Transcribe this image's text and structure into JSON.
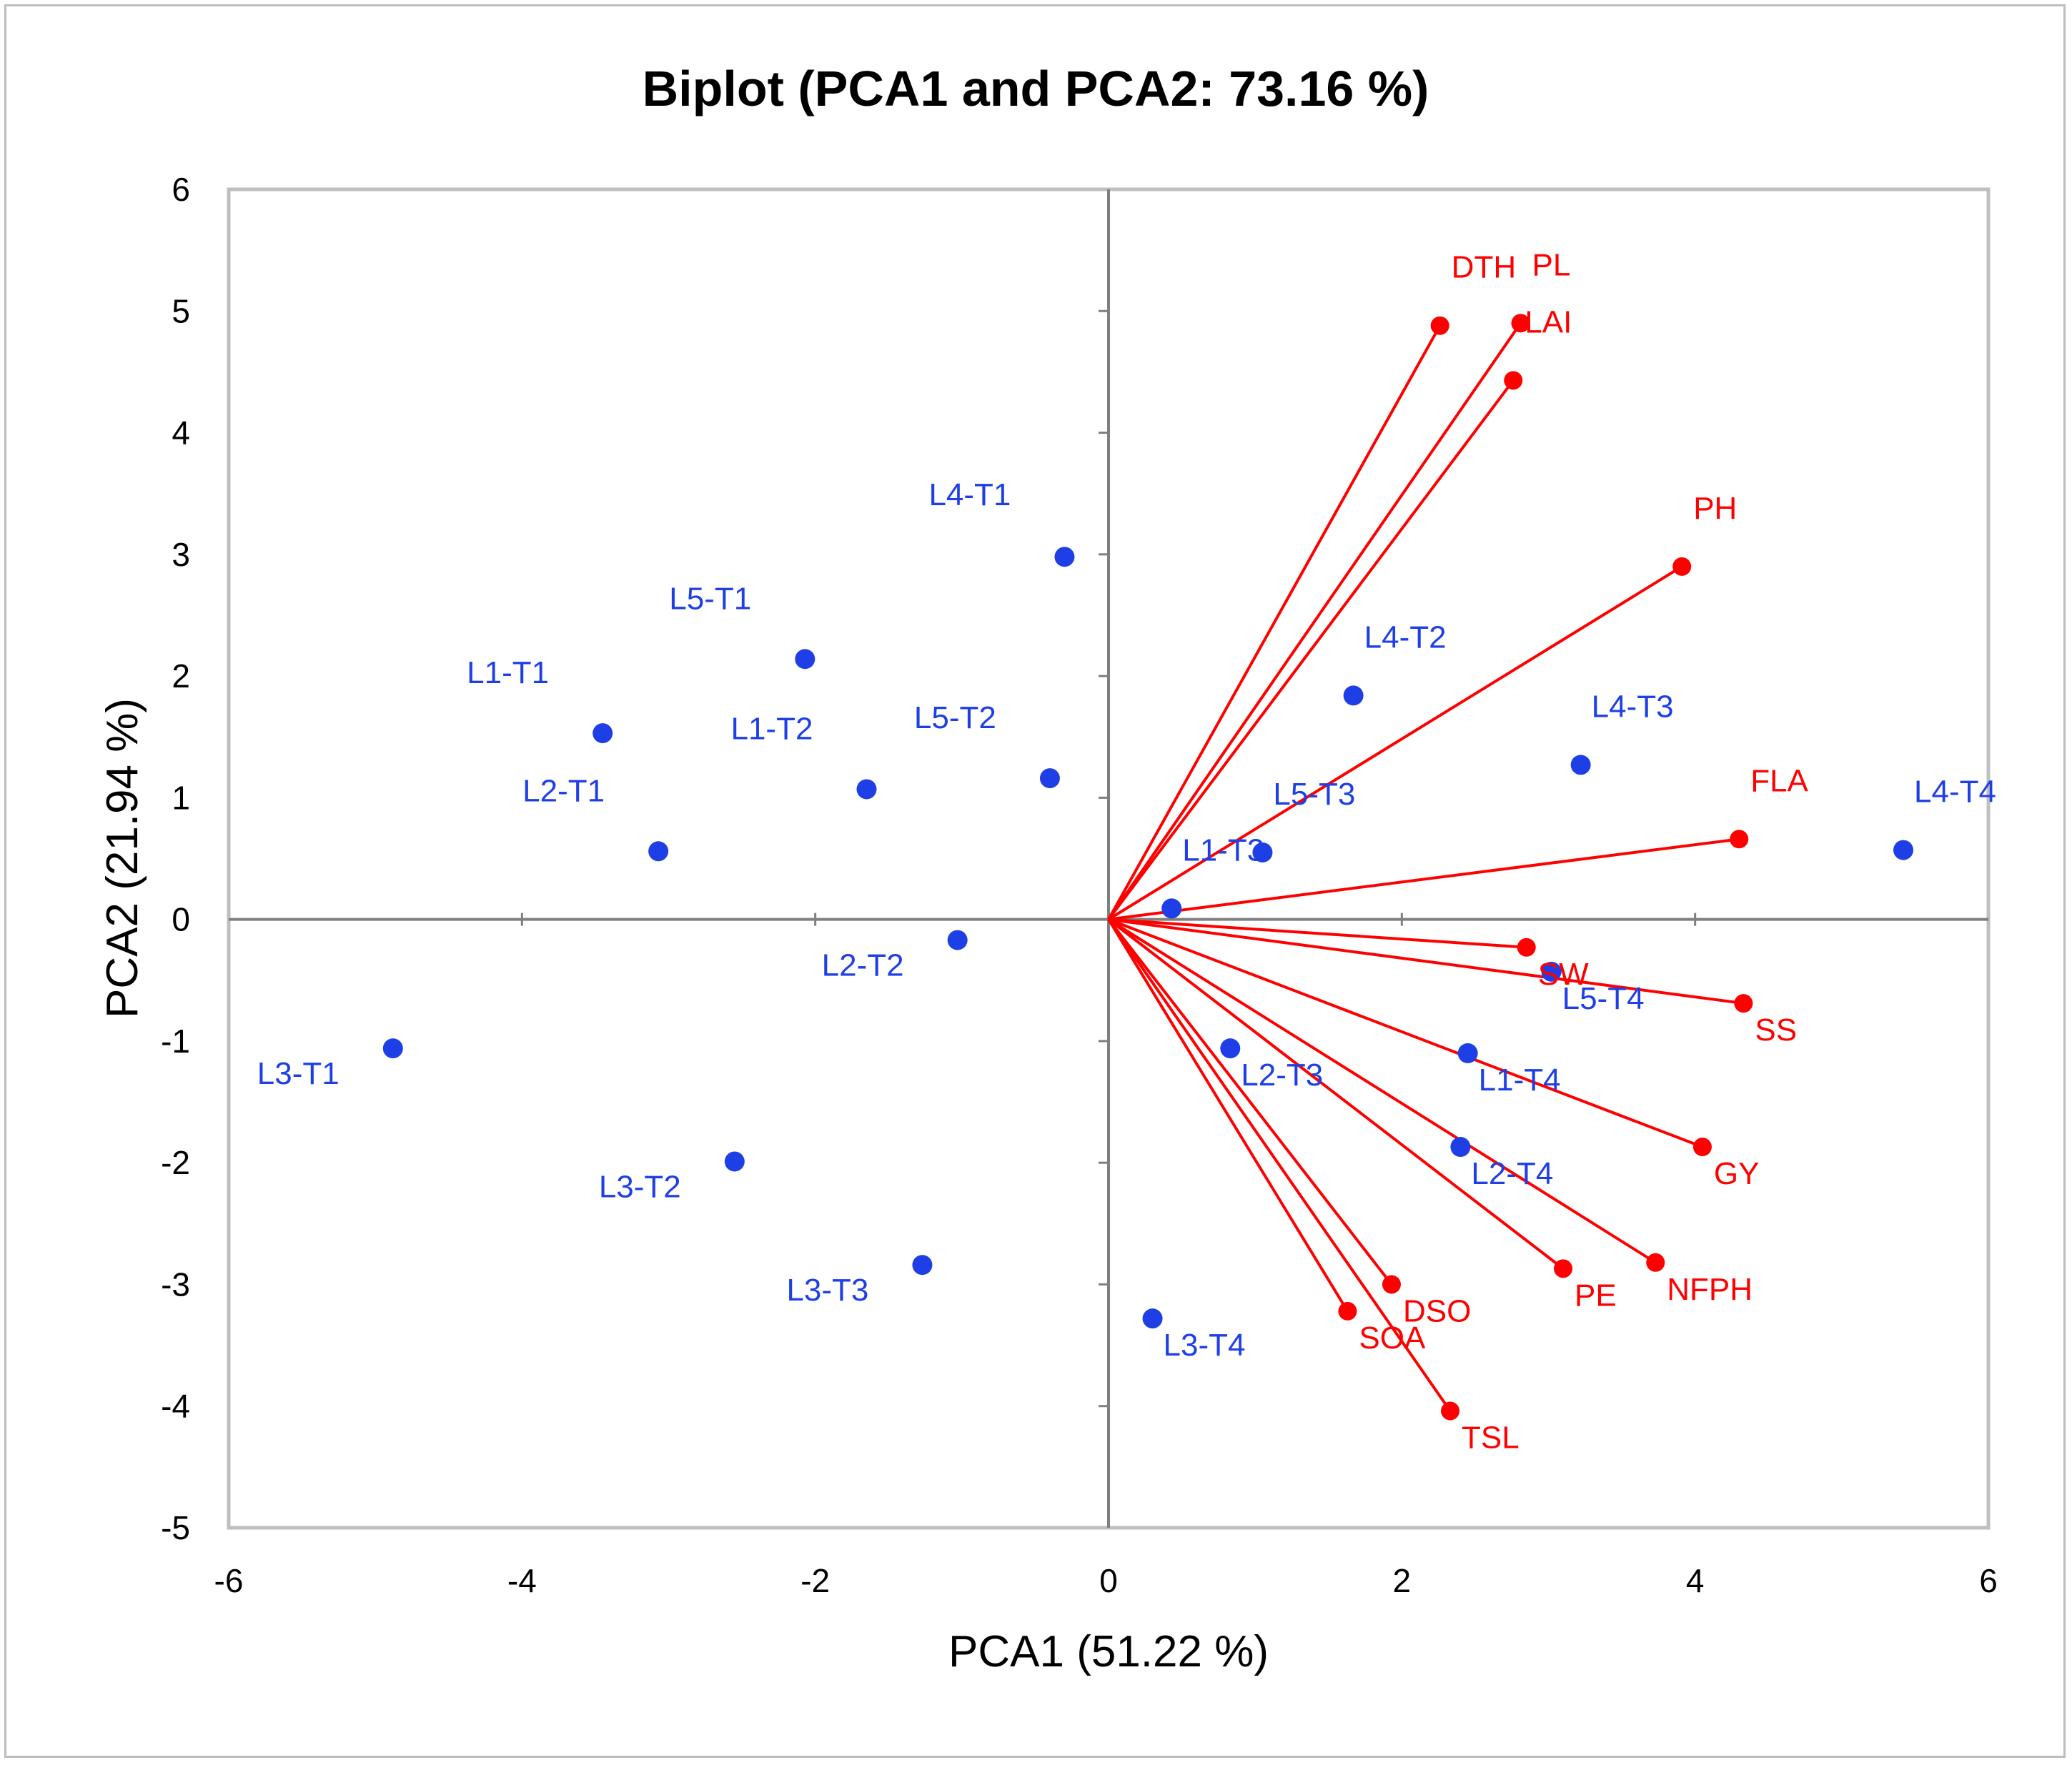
{
  "chart_data": {
    "type": "scatter",
    "title": "Biplot (PCA1 and PCA2: 73.16 %)",
    "xlabel": "PCA1 (51.22 %)",
    "ylabel": "PCA2 (21.94 %)",
    "xlim": [
      -6,
      6
    ],
    "ylim": [
      -5,
      6
    ],
    "xticks": [
      -6,
      -4,
      -2,
      0,
      2,
      4,
      6
    ],
    "yticks": [
      -5,
      -4,
      -3,
      -2,
      -1,
      0,
      1,
      2,
      3,
      4,
      5,
      6
    ],
    "grid": false,
    "colors": {
      "observations": "#1f3fe6",
      "variables": "#ff0000",
      "frame": "#bfbfbf",
      "axes": "#7f7f7f"
    },
    "observations": [
      {
        "label": "L4-T1",
        "x": -0.3,
        "y": 2.98
      },
      {
        "label": "L5-T1",
        "x": -2.07,
        "y": 2.14
      },
      {
        "label": "L1-T1",
        "x": -3.45,
        "y": 1.53
      },
      {
        "label": "L1-T2",
        "x": -1.65,
        "y": 1.07
      },
      {
        "label": "L5-T2",
        "x": -0.4,
        "y": 1.16
      },
      {
        "label": "L2-T1",
        "x": -3.07,
        "y": 0.56
      },
      {
        "label": "L2-T2",
        "x": -1.03,
        "y": -0.17
      },
      {
        "label": "L3-T1",
        "x": -4.88,
        "y": -1.06
      },
      {
        "label": "L3-T2",
        "x": -2.55,
        "y": -1.99
      },
      {
        "label": "L3-T3",
        "x": -1.27,
        "y": -2.84
      },
      {
        "label": "L4-T2",
        "x": 1.67,
        "y": 1.84
      },
      {
        "label": "L4-T3",
        "x": 3.22,
        "y": 1.27
      },
      {
        "label": "L4-T4",
        "x": 5.42,
        "y": 0.57
      },
      {
        "label": "L5-T3",
        "x": 1.05,
        "y": 0.55
      },
      {
        "label": "L1-T3",
        "x": 0.43,
        "y": 0.09
      },
      {
        "label": "L5-T4",
        "x": 3.02,
        "y": -0.43
      },
      {
        "label": "L1-T4",
        "x": 2.45,
        "y": -1.1
      },
      {
        "label": "L2-T3",
        "x": 0.83,
        "y": -1.06
      },
      {
        "label": "L2-T4",
        "x": 2.4,
        "y": -1.87
      },
      {
        "label": "L3-T4",
        "x": 0.3,
        "y": -3.28
      }
    ],
    "variables": [
      {
        "label": "DTH",
        "x": 2.26,
        "y": 4.88
      },
      {
        "label": "PL",
        "x": 2.81,
        "y": 4.9
      },
      {
        "label": "LAI",
        "x": 2.76,
        "y": 4.43
      },
      {
        "label": "PH",
        "x": 3.91,
        "y": 2.9
      },
      {
        "label": "FLA",
        "x": 4.3,
        "y": 0.66
      },
      {
        "label": "SW",
        "x": 2.85,
        "y": -0.23
      },
      {
        "label": "SS",
        "x": 4.33,
        "y": -0.69
      },
      {
        "label": "GY",
        "x": 4.05,
        "y": -1.87
      },
      {
        "label": "NFPH",
        "x": 3.73,
        "y": -2.82
      },
      {
        "label": "PE",
        "x": 3.1,
        "y": -2.87
      },
      {
        "label": "DSO",
        "x": 1.93,
        "y": -3.0
      },
      {
        "label": "SOA",
        "x": 1.63,
        "y": -3.22
      },
      {
        "label": "TSL",
        "x": 2.33,
        "y": -4.04
      }
    ]
  }
}
